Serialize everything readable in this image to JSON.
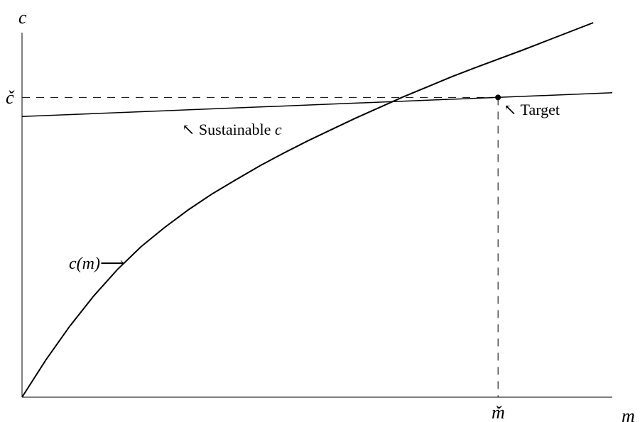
{
  "chart_data": {
    "type": "line",
    "xlabel": "m",
    "ylabel": "c",
    "xlim": [
      0,
      1.24
    ],
    "ylim": [
      0,
      1.03
    ],
    "grid": false,
    "series": [
      {
        "name": "c(m)",
        "x": [
          0,
          0.05,
          0.1,
          0.15,
          0.2,
          0.25,
          0.3,
          0.35,
          0.4,
          0.45,
          0.5,
          0.55,
          0.6,
          0.65,
          0.7,
          0.75,
          0.8,
          0.85,
          0.9,
          0.95,
          1.0,
          1.05,
          1.1,
          1.15,
          1.2
        ],
        "y": [
          0.0,
          0.105,
          0.2,
          0.285,
          0.36,
          0.425,
          0.48,
          0.53,
          0.575,
          0.615,
          0.654,
          0.69,
          0.724,
          0.756,
          0.788,
          0.818,
          0.848,
          0.876,
          0.904,
          0.93,
          0.955,
          0.98,
          1.006,
          1.032,
          1.058
        ]
      },
      {
        "name": "Sustainable c",
        "x": [
          0,
          1.24
        ],
        "y": [
          0.793,
          0.86
        ]
      }
    ],
    "target": {
      "x": 1.0,
      "y": 0.847
    },
    "annotations": {
      "c_label": "c(m)⟶",
      "sustainable_label": "↖ Sustainable ",
      "sustainable_var": "c",
      "target_label": "↖ Target",
      "c_check": "č",
      "m_check": "m̌"
    }
  }
}
